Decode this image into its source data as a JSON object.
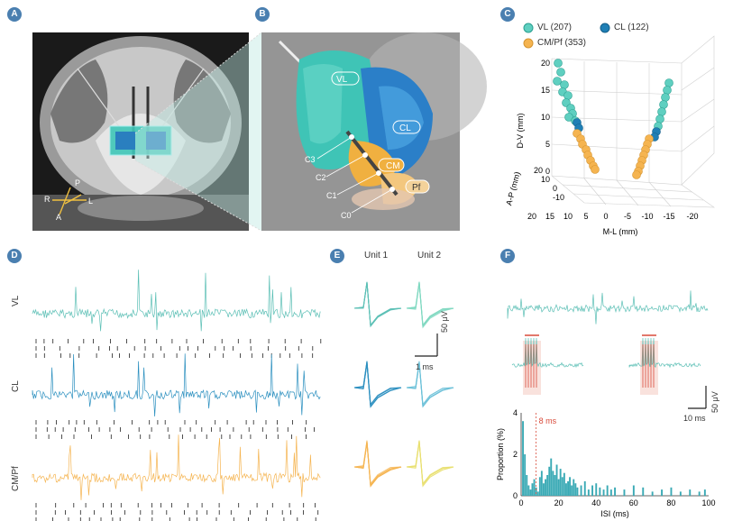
{
  "panels": {
    "a": "A",
    "b": "B",
    "c": "C",
    "d": "D",
    "e": "E",
    "f": "F"
  },
  "panel_a": {
    "axis_labels": {
      "p": "P",
      "r": "R",
      "l": "L",
      "a": "A"
    }
  },
  "panel_b": {
    "regions": {
      "vl": "VL",
      "cl": "CL",
      "cm": "CM",
      "pf": "Pf"
    },
    "contacts": {
      "c3": "C3",
      "c2": "C2",
      "c1": "C1",
      "c0": "C0"
    }
  },
  "panel_c": {
    "legend": {
      "vl": "VL (207)",
      "cl": "CL (122)",
      "cmpf": "CM/Pf (353)"
    },
    "ylabel": "D-V (mm)",
    "zlabel": "A-P (mm)",
    "xlabel": "M-L (mm)",
    "y_ticks": [
      "20",
      "15",
      "10",
      "5",
      "0"
    ],
    "z_ticks": [
      "20",
      "10",
      "0",
      "-10"
    ],
    "x_ticks": [
      "20",
      "15",
      "10",
      "5",
      "0",
      "-5",
      "-10",
      "-15",
      "-20"
    ]
  },
  "panel_d": {
    "traces": {
      "vl": "VL",
      "cl": "CL",
      "cmpf": "CM/Pf"
    }
  },
  "panel_e": {
    "unit1": "Unit 1",
    "unit2": "Unit 2",
    "scale_v": "50 μV",
    "scale_t": "1 ms"
  },
  "panel_f": {
    "scale_v": "50 μV",
    "scale_t": "10 ms",
    "annotation": "8 ms",
    "ylabel": "Proportion (%)",
    "xlabel": "ISI (ms)",
    "y_ticks": [
      "4",
      "2",
      "0"
    ],
    "x_ticks": [
      "0",
      "20",
      "40",
      "60",
      "80",
      "100"
    ]
  },
  "colors": {
    "vl": "#5bbfb5",
    "cl": "#2a8fbf",
    "cmpf": "#f5b450",
    "badge": "#4a7fb0",
    "red": "#d84a3a"
  },
  "chart_data": {
    "type": "bar",
    "title": "",
    "xlabel": "ISI (ms)",
    "ylabel": "Proportion (%)",
    "xlim": [
      0,
      100
    ],
    "ylim": [
      0,
      4
    ],
    "x": [
      1,
      2,
      3,
      4,
      5,
      6,
      7,
      8,
      9,
      10,
      11,
      12,
      13,
      14,
      15,
      16,
      17,
      18,
      19,
      20,
      21,
      22,
      23,
      24,
      25,
      26,
      27,
      28,
      29,
      30,
      32,
      34,
      36,
      38,
      40,
      42,
      44,
      46,
      48,
      50,
      55,
      60,
      65,
      70,
      75,
      80,
      85,
      90,
      95,
      98
    ],
    "values": [
      3.6,
      2.0,
      1.0,
      0.5,
      0.3,
      0.6,
      0.8,
      0.4,
      0.2,
      0.9,
      1.2,
      0.6,
      0.8,
      1.0,
      1.4,
      1.8,
      1.2,
      1.0,
      1.5,
      0.8,
      1.3,
      0.9,
      1.1,
      0.6,
      0.7,
      0.9,
      0.5,
      0.8,
      0.6,
      0.4,
      0.5,
      0.7,
      0.3,
      0.5,
      0.6,
      0.4,
      0.3,
      0.5,
      0.3,
      0.4,
      0.3,
      0.5,
      0.4,
      0.2,
      0.3,
      0.4,
      0.2,
      0.3,
      0.2,
      0.3
    ]
  }
}
